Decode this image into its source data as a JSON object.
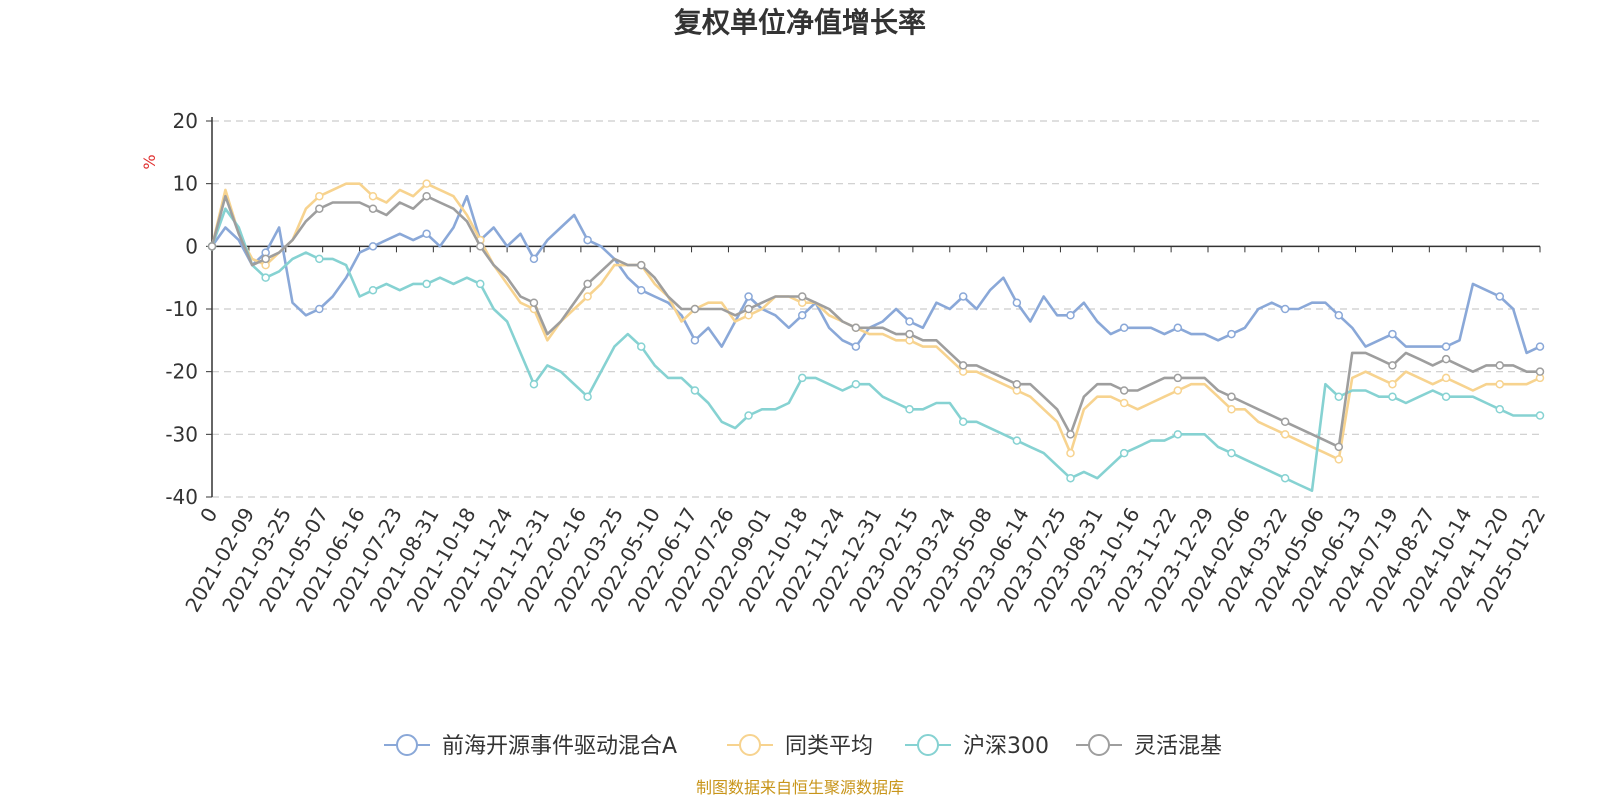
{
  "chart_data": {
    "type": "line",
    "title": "复权单位净值增长率",
    "ylabel": "%",
    "xlabel": "",
    "ylim": [
      -40,
      20
    ],
    "yticks": [
      20,
      10,
      0,
      -10,
      -20,
      -30,
      -40
    ],
    "ytick_labels": [
      "20",
      "10",
      "0",
      "-10",
      "-20",
      "-30",
      "-40"
    ],
    "grid": true,
    "legend_position": "bottom-center",
    "source_note": "制图数据来自恒生聚源数据库",
    "x_tick_labels": [
      "0",
      "2021-02-09",
      "2021-03-25",
      "2021-05-07",
      "2021-06-16",
      "2021-07-23",
      "2021-08-31",
      "2021-10-18",
      "2021-11-24",
      "2021-12-31",
      "2022-02-16",
      "2022-03-25",
      "2022-05-10",
      "2022-06-17",
      "2022-07-26",
      "2022-09-01",
      "2022-10-18",
      "2022-11-24",
      "2022-12-31",
      "2023-02-15",
      "2023-03-24",
      "2023-05-08",
      "2023-06-14",
      "2023-07-25",
      "2023-08-31",
      "2023-10-16",
      "2023-11-22",
      "2023-12-29",
      "2024-02-06",
      "2024-03-22",
      "2024-05-06",
      "2024-06-13",
      "2024-07-19",
      "2024-08-27",
      "2024-10-14",
      "2024-11-20",
      "2025-01-22"
    ],
    "series": [
      {
        "name": "前海开源事件驱动混合A",
        "color": "#8aa8d8",
        "values": [
          0,
          3,
          1,
          -3,
          -1,
          3,
          -9,
          -11,
          -10,
          -8,
          -5,
          -1,
          0,
          1,
          2,
          1,
          2,
          0,
          3,
          8,
          1,
          3,
          0,
          2,
          -2,
          1,
          3,
          5,
          1,
          0,
          -2,
          -5,
          -7,
          -8,
          -9,
          -11,
          -15,
          -13,
          -16,
          -12,
          -8,
          -10,
          -11,
          -13,
          -11,
          -9,
          -13,
          -15,
          -16,
          -13,
          -12,
          -10,
          -12,
          -13,
          -9,
          -10,
          -8,
          -10,
          -7,
          -5,
          -9,
          -12,
          -8,
          -11,
          -11,
          -9,
          -12,
          -14,
          -13,
          -13,
          -13,
          -14,
          -13,
          -14,
          -14,
          -15,
          -14,
          -13,
          -10,
          -9,
          -10,
          -10,
          -9,
          -9,
          -11,
          -13,
          -16,
          -15,
          -14,
          -16,
          -16,
          -16,
          -16,
          -15,
          -6,
          -7,
          -8,
          -10,
          -17,
          -16
        ]
      },
      {
        "name": "同类平均",
        "color": "#f7d38f",
        "values": [
          0,
          9,
          2,
          -2,
          -3,
          -1,
          1,
          6,
          8,
          9,
          10,
          10,
          8,
          7,
          9,
          8,
          10,
          9,
          8,
          5,
          1,
          -3,
          -6,
          -9,
          -10,
          -15,
          -12,
          -10,
          -8,
          -6,
          -3,
          -3,
          -3,
          -6,
          -8,
          -12,
          -10,
          -9,
          -9,
          -12,
          -11,
          -10,
          -8,
          -8,
          -9,
          -9,
          -11,
          -12,
          -13,
          -14,
          -14,
          -15,
          -15,
          -16,
          -16,
          -18,
          -20,
          -20,
          -21,
          -22,
          -23,
          -24,
          -26,
          -28,
          -33,
          -26,
          -24,
          -24,
          -25,
          -26,
          -25,
          -24,
          -23,
          -22,
          -22,
          -24,
          -26,
          -26,
          -28,
          -29,
          -30,
          -31,
          -32,
          -33,
          -34,
          -21,
          -20,
          -21,
          -22,
          -20,
          -21,
          -22,
          -21,
          -22,
          -23,
          -22,
          -22,
          -22,
          -22,
          -21
        ]
      },
      {
        "name": "沪深300",
        "color": "#86d2d2",
        "values": [
          0,
          6,
          3,
          -3,
          -5,
          -4,
          -2,
          -1,
          -2,
          -2,
          -3,
          -8,
          -7,
          -6,
          -7,
          -6,
          -6,
          -5,
          -6,
          -5,
          -6,
          -10,
          -12,
          -17,
          -22,
          -19,
          -20,
          -22,
          -24,
          -20,
          -16,
          -14,
          -16,
          -19,
          -21,
          -21,
          -23,
          -25,
          -28,
          -29,
          -27,
          -26,
          -26,
          -25,
          -21,
          -21,
          -22,
          -23,
          -22,
          -22,
          -24,
          -25,
          -26,
          -26,
          -25,
          -25,
          -28,
          -28,
          -29,
          -30,
          -31,
          -32,
          -33,
          -35,
          -37,
          -36,
          -37,
          -35,
          -33,
          -32,
          -31,
          -31,
          -30,
          -30,
          -30,
          -32,
          -33,
          -34,
          -35,
          -36,
          -37,
          -38,
          -39,
          -22,
          -24,
          -23,
          -23,
          -24,
          -24,
          -25,
          -24,
          -23,
          -24,
          -24,
          -24,
          -25,
          -26,
          -27,
          -27,
          -27
        ]
      },
      {
        "name": "灵活混基",
        "color": "#9e9e9e",
        "values": [
          0,
          8,
          2,
          -3,
          -2,
          -1,
          1,
          4,
          6,
          7,
          7,
          7,
          6,
          5,
          7,
          6,
          8,
          7,
          6,
          4,
          0,
          -3,
          -5,
          -8,
          -9,
          -14,
          -12,
          -9,
          -6,
          -4,
          -2,
          -3,
          -3,
          -5,
          -8,
          -10,
          -10,
          -10,
          -10,
          -11,
          -10,
          -9,
          -8,
          -8,
          -8,
          -9,
          -10,
          -12,
          -13,
          -13,
          -13,
          -14,
          -14,
          -15,
          -15,
          -17,
          -19,
          -19,
          -20,
          -21,
          -22,
          -22,
          -24,
          -26,
          -30,
          -24,
          -22,
          -22,
          -23,
          -23,
          -22,
          -21,
          -21,
          -21,
          -21,
          -23,
          -24,
          -25,
          -26,
          -27,
          -28,
          -29,
          -30,
          -31,
          -32,
          -17,
          -17,
          -18,
          -19,
          -17,
          -18,
          -19,
          -18,
          -19,
          -20,
          -19,
          -19,
          -19,
          -20,
          -20
        ]
      }
    ]
  }
}
